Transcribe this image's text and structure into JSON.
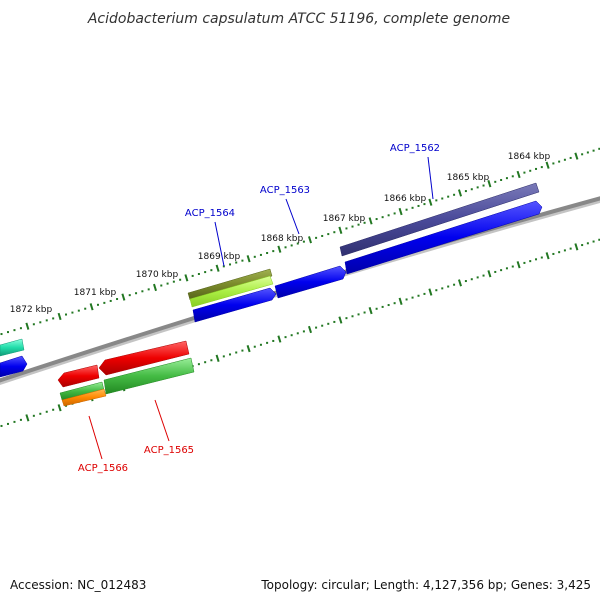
{
  "title": "Acidobacterium capsulatum ATCC 51196, complete genome",
  "footer": {
    "accession": "Accession: NC_012483",
    "stats": "Topology: circular; Length: 4,127,356 bp; Genes: 3,425"
  },
  "ticks": [
    "1864 kbp",
    "1865 kbp",
    "1866 kbp",
    "1867 kbp",
    "1868 kbp",
    "1869 kbp",
    "1870 kbp",
    "1871 kbp",
    "1872 kbp"
  ],
  "genes": {
    "forward": [
      "ACP_1562",
      "ACP_1563",
      "ACP_1564"
    ],
    "reverse": [
      "ACP_1565",
      "ACP_1566"
    ]
  },
  "colors": {
    "forward_label": "#0000cc",
    "reverse_label": "#dd0000",
    "backbone": "#888888",
    "tick_dots": "#227722",
    "blue_cds": "#0000ee",
    "purple_cds": "#4a4a9a",
    "olive_cds": "#7a8a2a",
    "lime_cds": "#aaee44",
    "red_cds": "#ee0000",
    "green_cds": "#44bb44",
    "orange_cds": "#ff8800",
    "teal_cds": "#22ddaa"
  }
}
